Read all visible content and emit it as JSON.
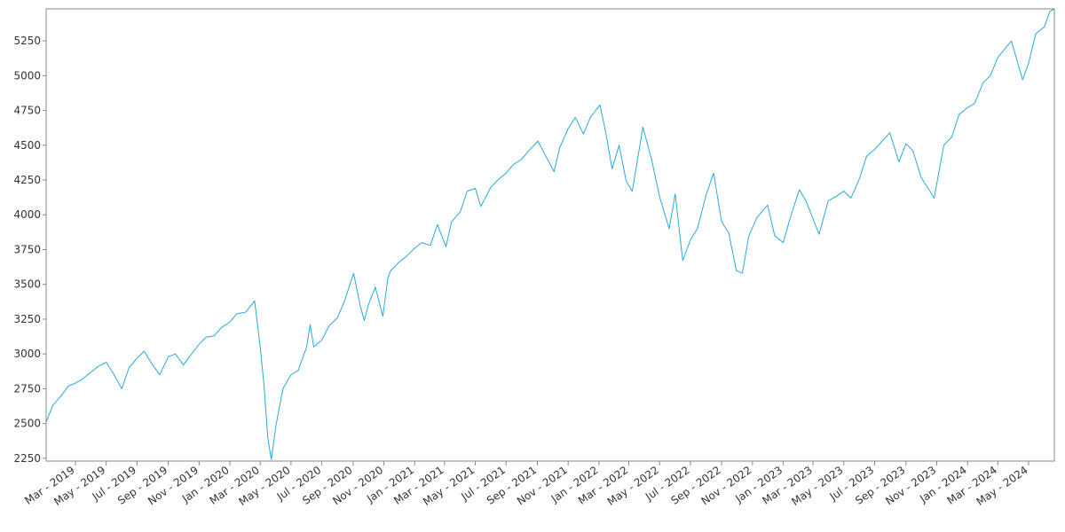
{
  "chart_data": {
    "type": "line",
    "title": "",
    "xlabel": "",
    "ylabel": "",
    "grid": false,
    "legend": "none",
    "colors": {
      "line": "#29a9d9",
      "axis": "#888888",
      "text": "#333333",
      "background": "#ffffff"
    },
    "xlim": [
      "2019-01-02",
      "2024-06-21"
    ],
    "ylim": [
      2230,
      5480
    ],
    "y_ticks": [
      2250,
      2500,
      2750,
      3000,
      3250,
      3500,
      3750,
      4000,
      4250,
      4500,
      4750,
      5000,
      5250
    ],
    "x_ticks": [
      {
        "date": "2019-03-01",
        "label": "Mar - 2019"
      },
      {
        "date": "2019-05-01",
        "label": "May - 2019"
      },
      {
        "date": "2019-07-01",
        "label": "Jul - 2019"
      },
      {
        "date": "2019-09-01",
        "label": "Sep - 2019"
      },
      {
        "date": "2019-11-01",
        "label": "Nov - 2019"
      },
      {
        "date": "2020-01-01",
        "label": "Jan - 2020"
      },
      {
        "date": "2020-03-01",
        "label": "Mar - 2020"
      },
      {
        "date": "2020-05-01",
        "label": "May - 2020"
      },
      {
        "date": "2020-07-01",
        "label": "Jul - 2020"
      },
      {
        "date": "2020-09-01",
        "label": "Sep - 2020"
      },
      {
        "date": "2020-11-01",
        "label": "Nov - 2020"
      },
      {
        "date": "2021-01-01",
        "label": "Jan - 2021"
      },
      {
        "date": "2021-03-01",
        "label": "Mar - 2021"
      },
      {
        "date": "2021-05-01",
        "label": "May - 2021"
      },
      {
        "date": "2021-07-01",
        "label": "Jul - 2021"
      },
      {
        "date": "2021-09-01",
        "label": "Sep - 2021"
      },
      {
        "date": "2021-11-01",
        "label": "Nov - 2021"
      },
      {
        "date": "2022-01-01",
        "label": "Jan - 2022"
      },
      {
        "date": "2022-03-01",
        "label": "Mar - 2022"
      },
      {
        "date": "2022-05-01",
        "label": "May - 2022"
      },
      {
        "date": "2022-07-01",
        "label": "Jul - 2022"
      },
      {
        "date": "2022-09-01",
        "label": "Sep - 2022"
      },
      {
        "date": "2022-11-01",
        "label": "Nov - 2022"
      },
      {
        "date": "2023-01-01",
        "label": "Jan - 2023"
      },
      {
        "date": "2023-03-01",
        "label": "Mar - 2023"
      },
      {
        "date": "2023-05-01",
        "label": "May - 2023"
      },
      {
        "date": "2023-07-01",
        "label": "Jul - 2023"
      },
      {
        "date": "2023-09-01",
        "label": "Sep - 2023"
      },
      {
        "date": "2023-11-01",
        "label": "Nov - 2023"
      },
      {
        "date": "2024-01-01",
        "label": "Jan - 2024"
      },
      {
        "date": "2024-03-01",
        "label": "Mar - 2024"
      },
      {
        "date": "2024-05-01",
        "label": "May - 2024"
      }
    ],
    "series": [
      {
        "x": [
          "2019-01-02",
          "2019-01-15",
          "2019-02-01",
          "2019-02-15",
          "2019-03-01",
          "2019-03-15",
          "2019-04-01",
          "2019-04-15",
          "2019-05-01",
          "2019-05-15",
          "2019-06-01",
          "2019-06-15",
          "2019-07-01",
          "2019-07-15",
          "2019-08-01",
          "2019-08-15",
          "2019-09-01",
          "2019-09-15",
          "2019-10-01",
          "2019-10-15",
          "2019-11-01",
          "2019-11-15",
          "2019-12-01",
          "2019-12-15",
          "2020-01-01",
          "2020-01-15",
          "2020-02-01",
          "2020-02-19",
          "2020-03-01",
          "2020-03-09",
          "2020-03-16",
          "2020-03-23",
          "2020-04-01",
          "2020-04-15",
          "2020-05-01",
          "2020-05-15",
          "2020-06-01",
          "2020-06-08",
          "2020-06-15",
          "2020-07-01",
          "2020-07-15",
          "2020-08-01",
          "2020-08-15",
          "2020-09-02",
          "2020-09-15",
          "2020-09-23",
          "2020-10-01",
          "2020-10-15",
          "2020-10-30",
          "2020-11-09",
          "2020-11-15",
          "2020-12-01",
          "2020-12-15",
          "2021-01-01",
          "2021-01-15",
          "2021-02-01",
          "2021-02-15",
          "2021-03-04",
          "2021-03-15",
          "2021-04-01",
          "2021-04-15",
          "2021-05-01",
          "2021-05-12",
          "2021-06-01",
          "2021-06-15",
          "2021-07-01",
          "2021-07-15",
          "2021-08-01",
          "2021-08-15",
          "2021-09-02",
          "2021-09-15",
          "2021-10-04",
          "2021-10-15",
          "2021-11-01",
          "2021-11-15",
          "2021-12-01",
          "2021-12-15",
          "2022-01-03",
          "2022-01-15",
          "2022-01-27",
          "2022-02-10",
          "2022-02-24",
          "2022-03-08",
          "2022-03-29",
          "2022-04-15",
          "2022-05-01",
          "2022-05-20",
          "2022-06-01",
          "2022-06-16",
          "2022-07-01",
          "2022-07-15",
          "2022-08-01",
          "2022-08-16",
          "2022-09-01",
          "2022-09-15",
          "2022-09-30",
          "2022-10-12",
          "2022-10-25",
          "2022-11-10",
          "2022-12-01",
          "2022-12-15",
          "2023-01-01",
          "2023-01-15",
          "2023-02-02",
          "2023-02-15",
          "2023-03-13",
          "2023-03-31",
          "2023-04-15",
          "2023-05-01",
          "2023-05-15",
          "2023-06-01",
          "2023-06-15",
          "2023-07-01",
          "2023-07-31",
          "2023-08-18",
          "2023-09-01",
          "2023-09-15",
          "2023-10-01",
          "2023-10-27",
          "2023-11-15",
          "2023-12-01",
          "2023-12-15",
          "2024-01-01",
          "2024-01-15",
          "2024-02-01",
          "2024-02-15",
          "2024-03-01",
          "2024-03-28",
          "2024-04-19",
          "2024-05-01",
          "2024-05-15",
          "2024-06-01",
          "2024-06-12",
          "2024-06-21"
        ],
        "values": [
          2510,
          2630,
          2700,
          2770,
          2790,
          2820,
          2870,
          2910,
          2940,
          2860,
          2750,
          2900,
          2970,
          3020,
          2920,
          2850,
          2980,
          3000,
          2920,
          2990,
          3070,
          3120,
          3130,
          3190,
          3230,
          3290,
          3300,
          3380,
          3050,
          2760,
          2400,
          2240,
          2480,
          2750,
          2850,
          2880,
          3050,
          3210,
          3050,
          3100,
          3200,
          3260,
          3380,
          3580,
          3350,
          3240,
          3350,
          3480,
          3270,
          3550,
          3600,
          3660,
          3700,
          3760,
          3800,
          3780,
          3930,
          3770,
          3950,
          4020,
          4170,
          4190,
          4060,
          4200,
          4250,
          4300,
          4360,
          4400,
          4460,
          4530,
          4440,
          4310,
          4480,
          4620,
          4700,
          4580,
          4700,
          4790,
          4580,
          4330,
          4500,
          4240,
          4170,
          4630,
          4400,
          4130,
          3900,
          4150,
          3670,
          3820,
          3900,
          4140,
          4300,
          3950,
          3870,
          3600,
          3580,
          3850,
          3980,
          4070,
          3850,
          3800,
          3980,
          4180,
          4100,
          3860,
          4100,
          4130,
          4170,
          4120,
          4260,
          4420,
          4470,
          4590,
          4380,
          4510,
          4460,
          4270,
          4120,
          4500,
          4560,
          4720,
          4770,
          4800,
          4950,
          5000,
          5130,
          5250,
          4970,
          5090,
          5300,
          5350,
          5460,
          5480
        ]
      }
    ]
  }
}
